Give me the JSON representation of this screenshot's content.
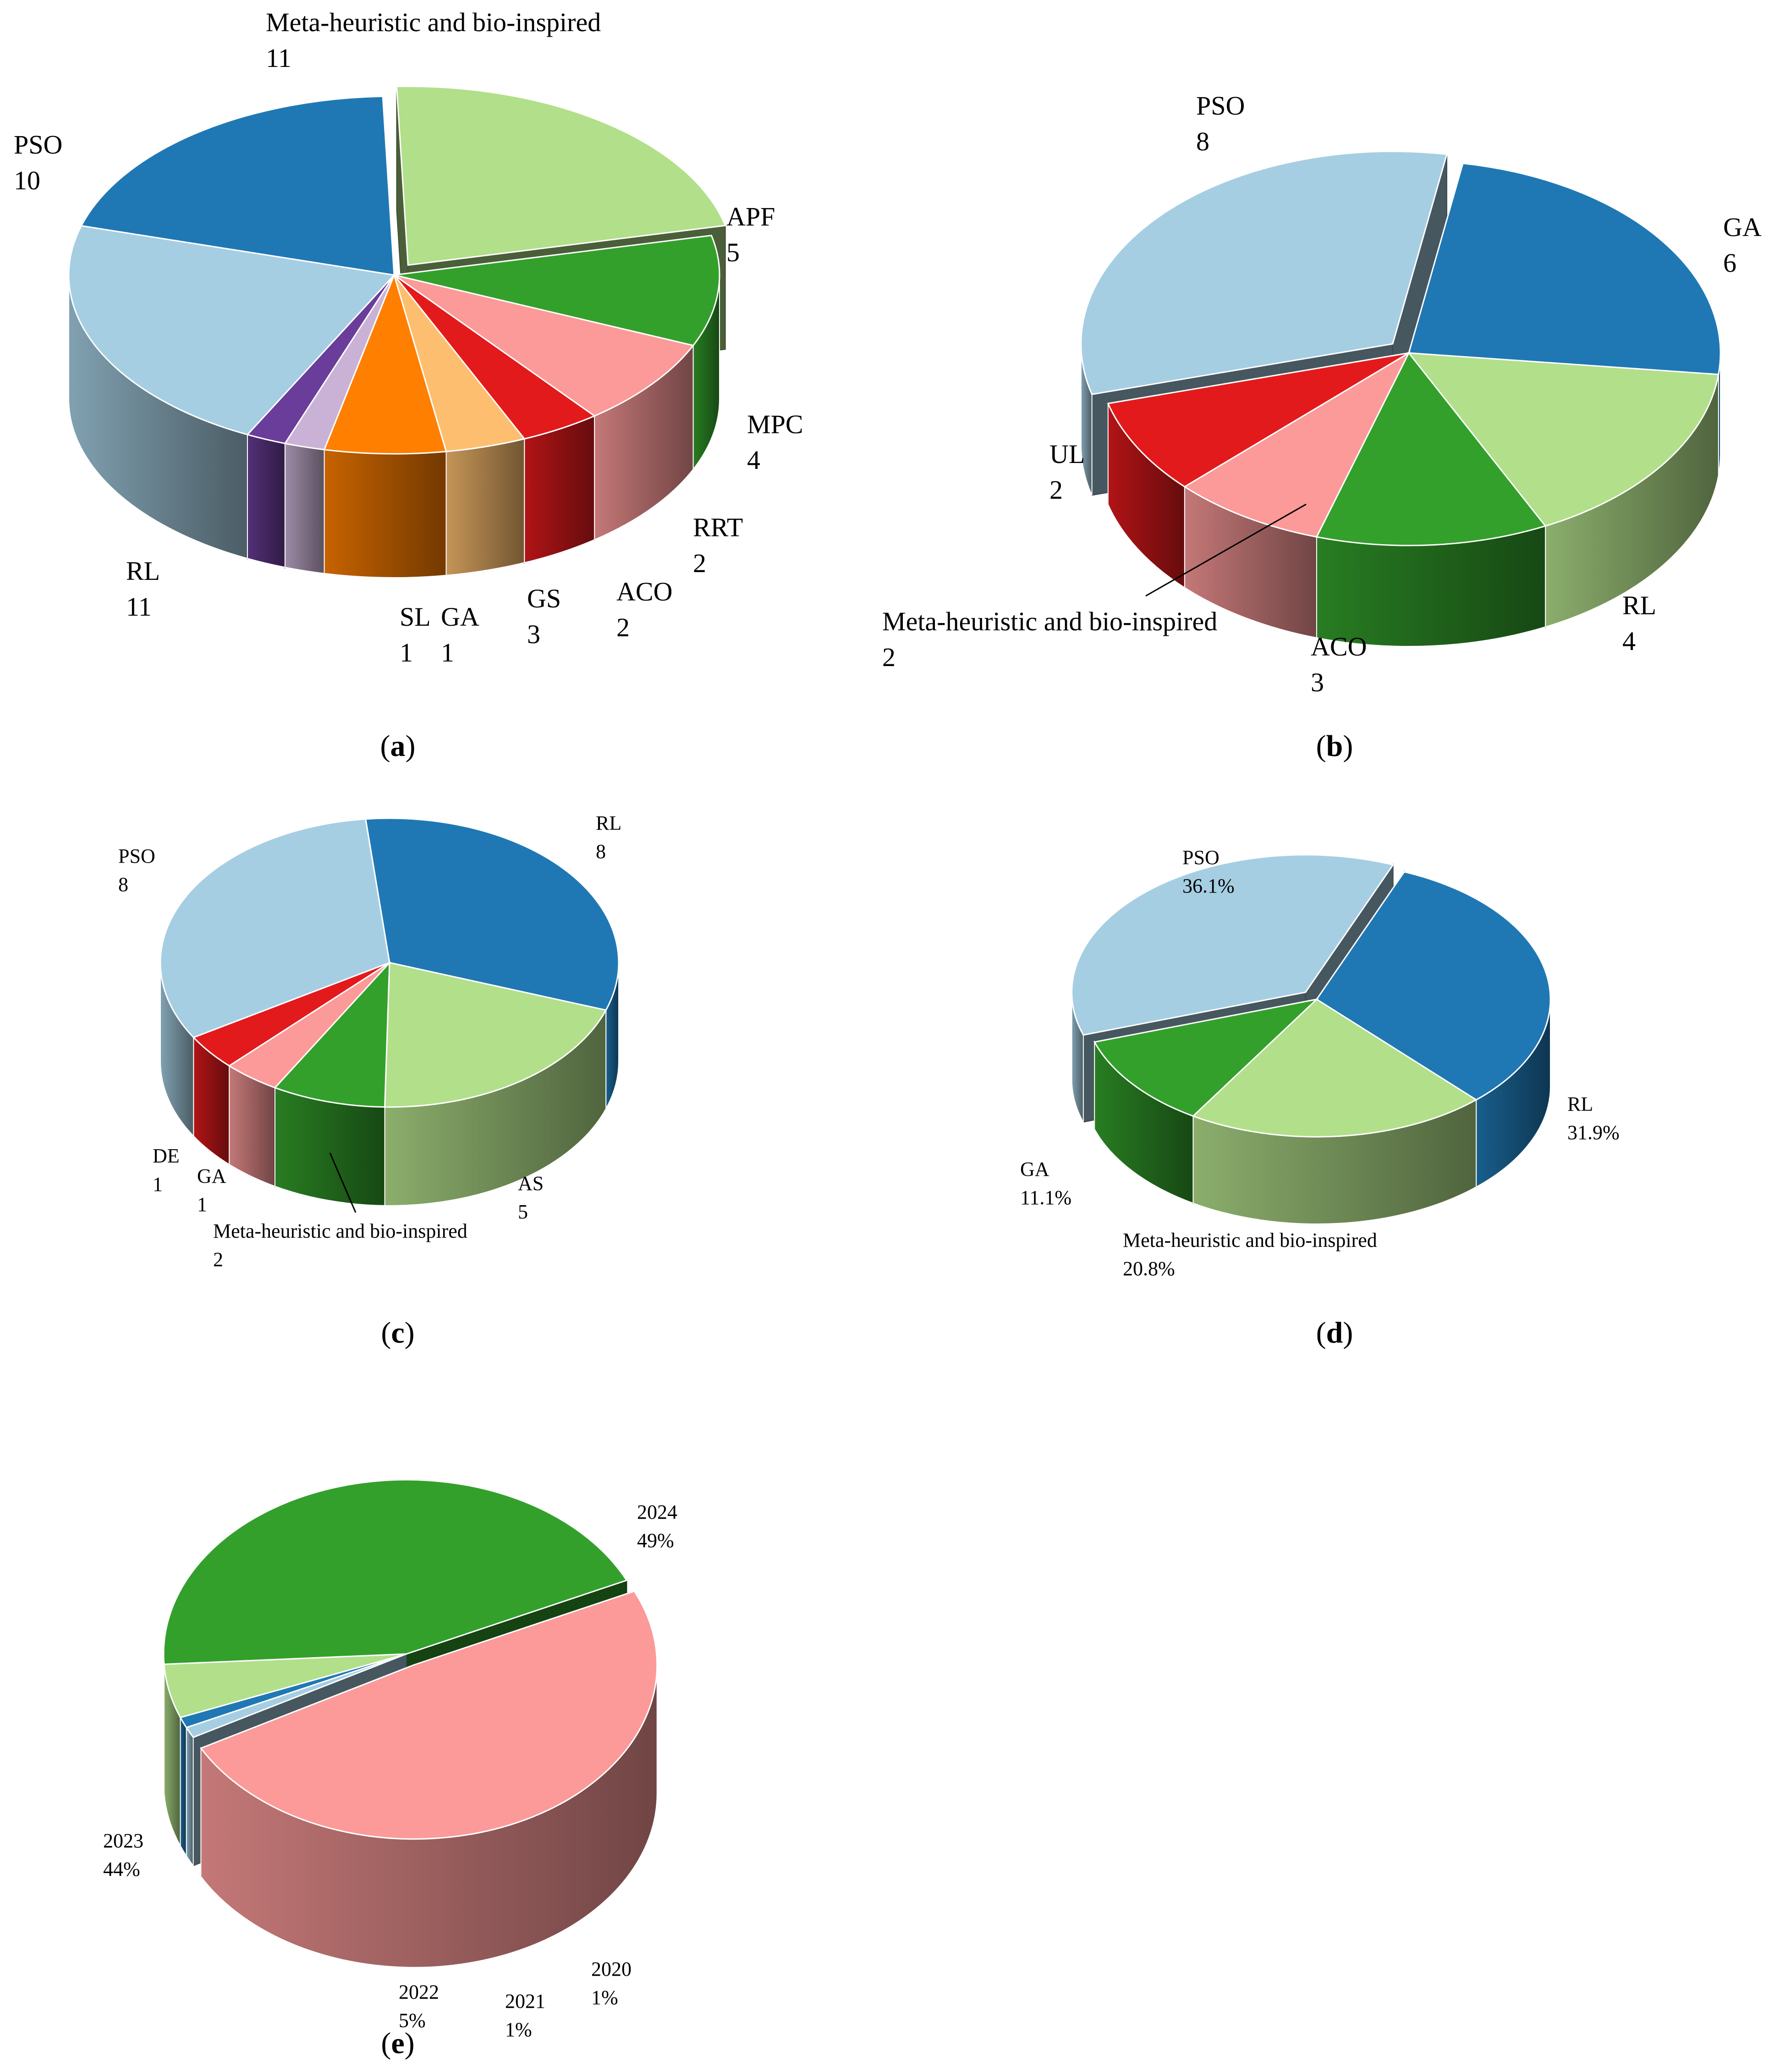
{
  "chart_data": [
    {
      "id": "a",
      "type": "pie",
      "caption": "a",
      "labels_show": "value",
      "slices": [
        {
          "label": "Meta-heuristic and bio-inspired",
          "value": 11,
          "color": "#b2df8a",
          "exploded": true
        },
        {
          "label": "APF",
          "value": 5,
          "color": "#33a02c"
        },
        {
          "label": "MPC",
          "value": 4,
          "color": "#fb9a99"
        },
        {
          "label": "RRT",
          "value": 2,
          "color": "#e31a1c"
        },
        {
          "label": "ACO",
          "value": 2,
          "color": "#fdbf6f"
        },
        {
          "label": "GS",
          "value": 3,
          "color": "#ff7f00"
        },
        {
          "label": "GA",
          "value": 1,
          "color": "#cab2d6"
        },
        {
          "label": "SL",
          "value": 1,
          "color": "#6a3d9a"
        },
        {
          "label": "RL",
          "value": 11,
          "color": "#a6cee3"
        },
        {
          "label": "PSO",
          "value": 10,
          "color": "#1f78b4"
        }
      ]
    },
    {
      "id": "b",
      "type": "pie",
      "caption": "b",
      "labels_show": "value",
      "slices": [
        {
          "label": "GA",
          "value": 6,
          "color": "#1f78b4"
        },
        {
          "label": "RL",
          "value": 4,
          "color": "#b2df8a"
        },
        {
          "label": "ACO",
          "value": 3,
          "color": "#33a02c"
        },
        {
          "label": "Meta-heuristic and bio-inspired",
          "value": 2,
          "color": "#fb9a99"
        },
        {
          "label": "UL",
          "value": 2,
          "color": "#e31a1c"
        },
        {
          "label": "PSO",
          "value": 8,
          "color": "#a6cee3",
          "exploded": true
        }
      ]
    },
    {
      "id": "c",
      "type": "pie",
      "caption": "c",
      "labels_show": "value",
      "slices": [
        {
          "label": "RL",
          "value": 8,
          "color": "#1f78b4"
        },
        {
          "label": "AS",
          "value": 5,
          "color": "#b2df8a"
        },
        {
          "label": "Meta-heuristic and bio-inspired",
          "value": 2,
          "color": "#33a02c"
        },
        {
          "label": "GA",
          "value": 1,
          "color": "#fb9a99"
        },
        {
          "label": "DE",
          "value": 1,
          "color": "#e31a1c"
        },
        {
          "label": "PSO",
          "value": 8,
          "color": "#a6cee3"
        }
      ]
    },
    {
      "id": "d",
      "type": "pie",
      "caption": "d",
      "labels_show": "percent",
      "slices": [
        {
          "label": "RL",
          "value": 31.9,
          "display": "31.9%",
          "color": "#1f78b4"
        },
        {
          "label": "Meta-heuristic and bio-inspired",
          "value": 20.8,
          "display": "20.8%",
          "color": "#b2df8a"
        },
        {
          "label": "GA",
          "value": 11.1,
          "display": "11.1%",
          "color": "#33a02c"
        },
        {
          "label": "PSO",
          "value": 36.1,
          "display": "36.1%",
          "color": "#a6cee3",
          "exploded": true
        }
      ]
    },
    {
      "id": "e",
      "type": "pie",
      "caption": "e",
      "labels_show": "percent",
      "slices": [
        {
          "label": "2024",
          "value": 49,
          "display": "49%",
          "color": "#fb9a99",
          "exploded": true
        },
        {
          "label": "2020",
          "value": 1,
          "display": "1%",
          "color": "#a6cee3"
        },
        {
          "label": "2021",
          "value": 1,
          "display": "1%",
          "color": "#1f78b4"
        },
        {
          "label": "2022",
          "value": 5,
          "display": "5%",
          "color": "#b2df8a"
        },
        {
          "label": "2023",
          "value": 44,
          "display": "44%",
          "color": "#33a02c"
        }
      ]
    }
  ]
}
